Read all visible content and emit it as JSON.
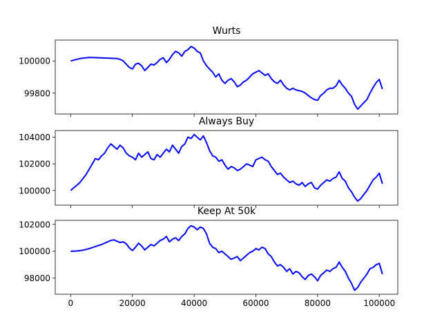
{
  "chart_data": [
    {
      "type": "line",
      "title": "Wurts",
      "xlim": [
        -5000,
        106000
      ],
      "ylim": [
        99670,
        100130
      ],
      "xticks": [
        0,
        20000,
        40000,
        60000,
        80000,
        100000
      ],
      "xtick_labels": [],
      "yticks": [
        99800,
        100000
      ],
      "ytick_labels": [
        "99800",
        "100000"
      ],
      "color": "#0000ff",
      "series": [
        {
          "x": [
            0,
            3000,
            6000,
            9000,
            12000,
            15000,
            16000,
            17000,
            18000,
            19000,
            20000,
            21000,
            22000,
            23000,
            24000,
            25000,
            26000,
            27000,
            28000,
            29000,
            30000,
            31000,
            32000,
            33000,
            34000,
            35000,
            36000,
            37000,
            38000,
            39000,
            40000,
            41000,
            42000,
            43000,
            44000,
            45000,
            46000,
            47000,
            48000,
            49000,
            50000,
            51000,
            52000,
            53000,
            54000,
            55000,
            56000,
            57000,
            58000,
            59000,
            60000,
            61000,
            62000,
            63000,
            64000,
            65000,
            66000,
            67000,
            68000,
            69000,
            70000,
            71000,
            72000,
            73000,
            74000,
            75000,
            76000,
            77000,
            78000,
            79000,
            80000,
            81000,
            82000,
            83000,
            84000,
            85000,
            86000,
            87000,
            88000,
            89000,
            90000,
            91000,
            92000,
            93000,
            94000,
            95000,
            96000,
            97000,
            98000,
            99000,
            100000,
            101000
          ],
          "y": [
            100000,
            100015,
            100022,
            100020,
            100018,
            100015,
            100010,
            100000,
            99980,
            99960,
            99950,
            99980,
            99985,
            99970,
            99940,
            99960,
            99980,
            99975,
            99990,
            100010,
            100020,
            99990,
            100010,
            100040,
            100060,
            100050,
            100030,
            100060,
            100070,
            100090,
            100080,
            100060,
            100050,
            100000,
            99970,
            99950,
            99930,
            99900,
            99920,
            99880,
            99860,
            99880,
            99890,
            99870,
            99840,
            99850,
            99870,
            99880,
            99900,
            99920,
            99930,
            99940,
            99925,
            99910,
            99920,
            99890,
            99870,
            99860,
            99880,
            99850,
            99830,
            99820,
            99830,
            99820,
            99815,
            99810,
            99800,
            99785,
            99770,
            99760,
            99755,
            99785,
            99800,
            99820,
            99830,
            99830,
            99845,
            99880,
            99850,
            99830,
            99800,
            99780,
            99730,
            99700,
            99720,
            99740,
            99760,
            99800,
            99835,
            99865,
            99885,
            99825
          ]
        }
      ]
    },
    {
      "type": "line",
      "title": "Always Buy",
      "xlim": [
        -5000,
        106000
      ],
      "ylim": [
        98900,
        104500
      ],
      "xticks": [
        0,
        20000,
        40000,
        60000,
        80000,
        100000
      ],
      "xtick_labels": [],
      "yticks": [
        100000,
        102000,
        104000
      ],
      "ytick_labels": [
        "100000",
        "102000",
        "104000"
      ],
      "color": "#0000ff",
      "series": [
        {
          "x": [
            0,
            1000,
            2000,
            3000,
            4000,
            5000,
            6000,
            7000,
            8000,
            9000,
            10000,
            11000,
            12000,
            13000,
            14000,
            15000,
            16000,
            17000,
            18000,
            19000,
            20000,
            21000,
            22000,
            23000,
            24000,
            25000,
            26000,
            27000,
            28000,
            29000,
            30000,
            31000,
            32000,
            33000,
            34000,
            35000,
            36000,
            37000,
            38000,
            39000,
            40000,
            41000,
            42000,
            43000,
            44000,
            45000,
            46000,
            47000,
            48000,
            49000,
            50000,
            51000,
            52000,
            53000,
            54000,
            55000,
            56000,
            57000,
            58000,
            59000,
            60000,
            61000,
            62000,
            63000,
            64000,
            65000,
            66000,
            67000,
            68000,
            69000,
            70000,
            71000,
            72000,
            73000,
            74000,
            75000,
            76000,
            77000,
            78000,
            79000,
            80000,
            81000,
            82000,
            83000,
            84000,
            85000,
            86000,
            87000,
            88000,
            89000,
            90000,
            91000,
            92000,
            93000,
            94000,
            95000,
            96000,
            97000,
            98000,
            99000,
            100000,
            101000
          ],
          "y": [
            100000,
            100200,
            100400,
            100600,
            100900,
            101200,
            101600,
            102000,
            102400,
            102300,
            102600,
            102800,
            103200,
            103500,
            103300,
            103100,
            103400,
            103200,
            102800,
            102600,
            102500,
            102300,
            102800,
            102500,
            102700,
            102900,
            102400,
            102300,
            102700,
            102500,
            102800,
            103100,
            102900,
            103400,
            103100,
            102800,
            103300,
            103500,
            104000,
            103900,
            104200,
            104000,
            103800,
            104100,
            103600,
            103000,
            102600,
            102500,
            102200,
            102300,
            101900,
            101600,
            101800,
            101700,
            101500,
            101600,
            101800,
            102000,
            101900,
            101800,
            102300,
            102400,
            102500,
            102300,
            102200,
            101800,
            101500,
            101200,
            101300,
            101000,
            100800,
            100600,
            100700,
            100500,
            100400,
            100600,
            100300,
            100500,
            100600,
            100200,
            100100,
            100400,
            100600,
            100800,
            100700,
            100900,
            101000,
            101400,
            100900,
            100700,
            100200,
            99900,
            99500,
            99200,
            99400,
            99700,
            100000,
            100400,
            100800,
            101000,
            101300,
            100500
          ]
        }
      ]
    },
    {
      "type": "line",
      "title": "Keep At 50k",
      "xlim": [
        -5000,
        106000
      ],
      "ylim": [
        96800,
        102300
      ],
      "xticks": [
        0,
        20000,
        40000,
        60000,
        80000,
        100000
      ],
      "xtick_labels": [
        "0",
        "20000",
        "40000",
        "60000",
        "80000",
        "100000"
      ],
      "yticks": [
        98000,
        100000,
        102000
      ],
      "ytick_labels": [
        "98000",
        "100000",
        "102000"
      ],
      "color": "#0000ff",
      "series": [
        {
          "x": [
            0,
            2000,
            4000,
            6000,
            8000,
            10000,
            12000,
            13000,
            14000,
            15000,
            16000,
            17000,
            18000,
            19000,
            20000,
            21000,
            22000,
            23000,
            24000,
            25000,
            26000,
            27000,
            28000,
            29000,
            30000,
            31000,
            32000,
            33000,
            34000,
            35000,
            36000,
            37000,
            38000,
            39000,
            40000,
            41000,
            42000,
            43000,
            44000,
            45000,
            46000,
            47000,
            48000,
            49000,
            50000,
            51000,
            52000,
            53000,
            54000,
            55000,
            56000,
            57000,
            58000,
            59000,
            60000,
            61000,
            62000,
            63000,
            64000,
            65000,
            66000,
            67000,
            68000,
            69000,
            70000,
            71000,
            72000,
            73000,
            74000,
            75000,
            76000,
            77000,
            78000,
            79000,
            80000,
            81000,
            82000,
            83000,
            84000,
            85000,
            86000,
            87000,
            88000,
            89000,
            90000,
            91000,
            92000,
            93000,
            94000,
            95000,
            96000,
            97000,
            98000,
            99000,
            100000,
            101000
          ],
          "y": [
            100000,
            100020,
            100080,
            100200,
            100350,
            100500,
            100700,
            100800,
            100850,
            100750,
            100650,
            100700,
            100550,
            100250,
            100050,
            100300,
            100600,
            100400,
            100100,
            100300,
            100500,
            100400,
            100600,
            100800,
            100900,
            101100,
            100700,
            100900,
            101000,
            100800,
            101100,
            101300,
            101700,
            101900,
            101800,
            101600,
            101800,
            101700,
            101300,
            100600,
            100300,
            100200,
            99900,
            100000,
            99800,
            99600,
            99400,
            99500,
            99600,
            99300,
            99500,
            99700,
            99900,
            100000,
            100200,
            100100,
            100300,
            100200,
            99800,
            99600,
            99200,
            98900,
            99000,
            98800,
            98500,
            98700,
            98300,
            98500,
            98400,
            98100,
            97900,
            98200,
            98300,
            98100,
            97800,
            98200,
            98400,
            98600,
            98500,
            98700,
            98800,
            99200,
            98800,
            98500,
            98000,
            97600,
            97100,
            97300,
            97700,
            98000,
            98300,
            98700,
            98800,
            99000,
            99100,
            98300
          ]
        }
      ]
    }
  ]
}
